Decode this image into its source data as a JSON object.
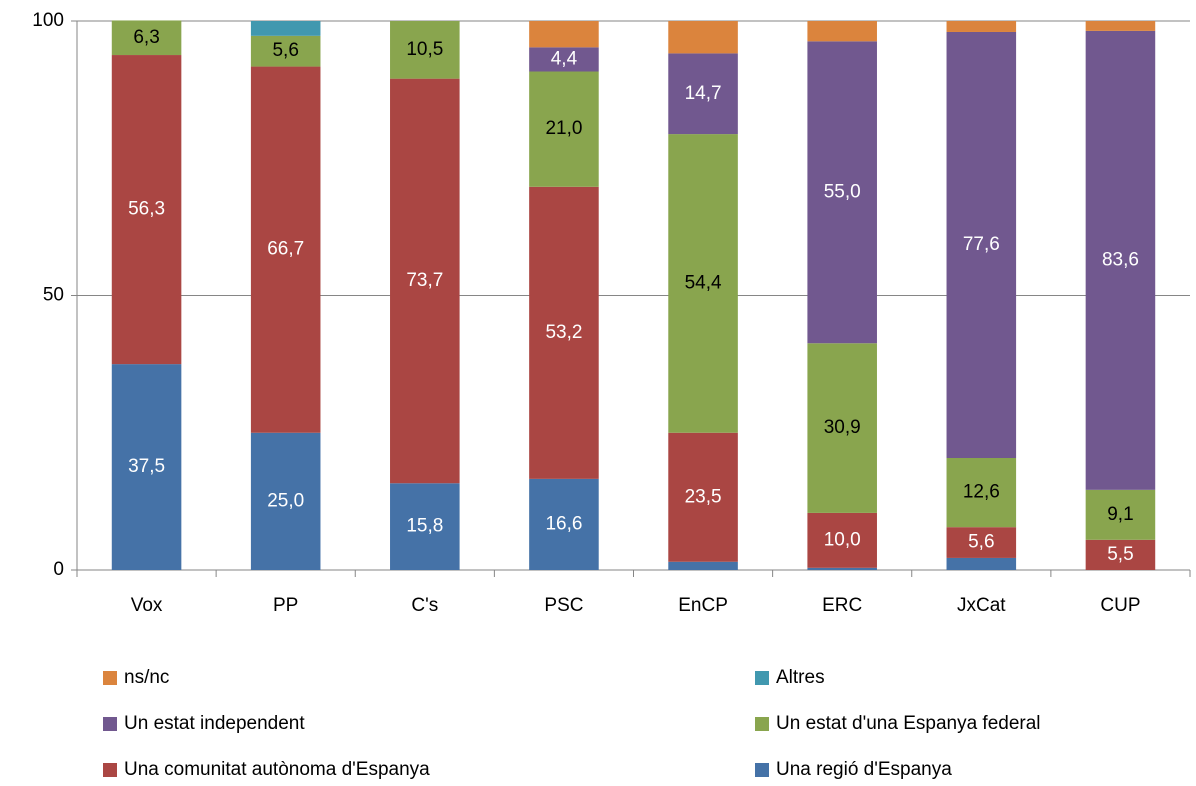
{
  "chart_data": {
    "type": "stacked_bar",
    "categories": [
      "Vox",
      "PP",
      "C's",
      "PSC",
      "EnCP",
      "ERC",
      "JxCat",
      "CUP"
    ],
    "series": [
      {
        "name": "Una regió d'Espanya",
        "color": "#4572a7",
        "label_color": "#ffffff",
        "values": [
          37.5,
          25.0,
          15.8,
          16.6,
          1.5,
          0.4,
          2.2,
          0
        ],
        "value_labels": [
          "37,5",
          "25,0",
          "15,8",
          "16,6",
          null,
          null,
          null,
          null
        ]
      },
      {
        "name": "Una comunitat autònoma d'Espanya",
        "color": "#aa4643",
        "label_color": "#ffffff",
        "values": [
          56.3,
          66.7,
          73.7,
          53.2,
          23.5,
          10.0,
          5.6,
          5.5
        ],
        "value_labels": [
          "56,3",
          "66,7",
          "73,7",
          "53,2",
          "23,5",
          "10,0",
          "5,6",
          "5,5"
        ]
      },
      {
        "name": "Un estat d'una Espanya federal",
        "color": "#89a54e",
        "label_color": "#000000",
        "values": [
          6.3,
          5.6,
          10.5,
          21.0,
          54.4,
          30.9,
          12.6,
          9.1
        ],
        "value_labels": [
          "6,3",
          "5,6",
          "10,5",
          "21,0",
          "54,4",
          "30,9",
          "12,6",
          "9,1"
        ]
      },
      {
        "name": "Un estat independent",
        "color": "#71588f",
        "label_color": "#ffffff",
        "values": [
          0,
          0,
          0,
          4.4,
          14.7,
          55.0,
          77.6,
          83.6
        ],
        "value_labels": [
          null,
          null,
          null,
          "4,4",
          "14,7",
          "55,0",
          "77,6",
          "83,6"
        ]
      },
      {
        "name": "Altres",
        "color": "#4198af",
        "label_color": "#ffffff",
        "values": [
          0,
          2.7,
          0,
          0,
          0,
          0,
          0,
          0
        ],
        "value_labels": [
          null,
          null,
          null,
          null,
          null,
          null,
          null,
          null
        ]
      },
      {
        "name": "ns/nc",
        "color": "#db843d",
        "label_color": "#ffffff",
        "values": [
          0,
          0,
          0,
          4.8,
          5.9,
          3.7,
          2.0,
          1.8
        ],
        "value_labels": [
          null,
          null,
          null,
          null,
          null,
          null,
          null,
          null
        ]
      }
    ],
    "ylim": [
      0,
      100
    ],
    "yticks": [
      0,
      50,
      100
    ],
    "grid": true
  }
}
